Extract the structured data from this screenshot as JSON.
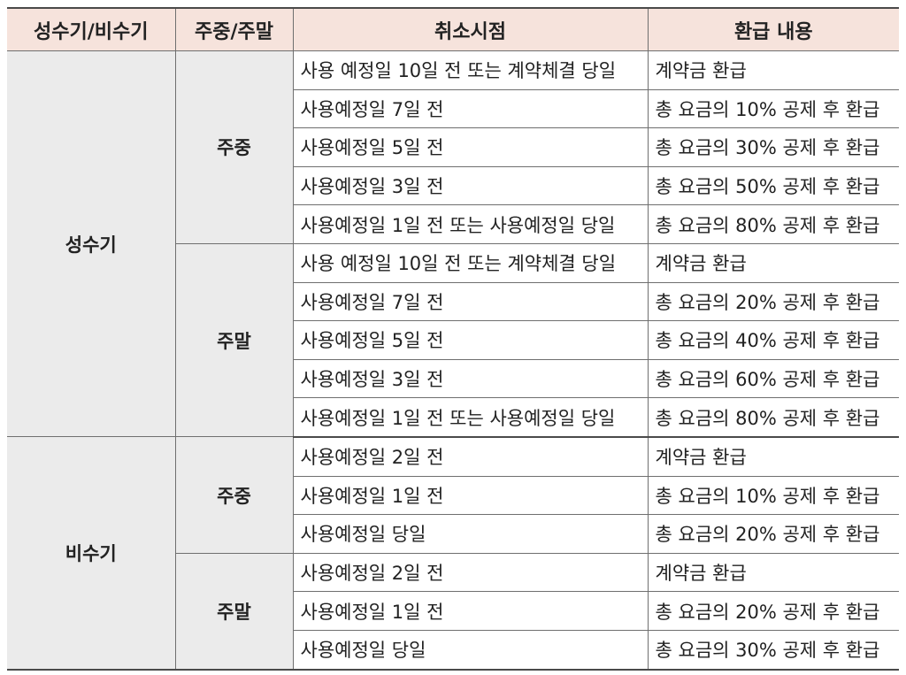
{
  "table": {
    "headers": [
      "성수기/비수기",
      "주중/주말",
      "취소시점",
      "환급 내용"
    ],
    "seasons": [
      {
        "label": "성수기",
        "groups": [
          {
            "label": "주중",
            "rows": [
              {
                "when": "사용 예정일 10일 전 또는 계약체결 당일",
                "refund": "계약금 환급"
              },
              {
                "when": "사용예정일 7일 전",
                "refund": "총 요금의 10% 공제 후 환급"
              },
              {
                "when": "사용예정일 5일 전",
                "refund": "총 요금의 30% 공제 후 환급"
              },
              {
                "when": "사용예정일 3일 전",
                "refund": "총 요금의 50% 공제 후 환급"
              },
              {
                "when": "사용예정일 1일 전 또는 사용예정일 당일",
                "refund": "총 요금의 80% 공제 후 환급"
              }
            ]
          },
          {
            "label": "주말",
            "rows": [
              {
                "when": "사용 예정일 10일 전 또는 계약체결 당일",
                "refund": "계약금 환급"
              },
              {
                "when": "사용예정일 7일 전",
                "refund": "총 요금의 20% 공제 후 환급"
              },
              {
                "when": "사용예정일 5일 전",
                "refund": "총 요금의 40% 공제 후 환급"
              },
              {
                "when": "사용예정일 3일 전",
                "refund": "총 요금의 60% 공제 후 환급"
              },
              {
                "when": "사용예정일 1일 전 또는 사용예정일 당일",
                "refund": "총 요금의 80% 공제 후 환급"
              }
            ]
          }
        ]
      },
      {
        "label": "비수기",
        "groups": [
          {
            "label": "주중",
            "rows": [
              {
                "when": "사용예정일 2일 전",
                "refund": "계약금 환급"
              },
              {
                "when": "사용예정일 1일 전",
                "refund": "총 요금의 10% 공제 후 환급"
              },
              {
                "when": "사용예정일 당일",
                "refund": "총 요금의 20% 공제 후 환급"
              }
            ]
          },
          {
            "label": "주말",
            "rows": [
              {
                "when": "사용예정일 2일 전",
                "refund": "계약금 환급"
              },
              {
                "when": "사용예정일 1일 전",
                "refund": "총 요금의 20% 공제 후 환급"
              },
              {
                "when": "사용예정일 당일",
                "refund": "총 요금의 30% 공제 후 환급"
              }
            ]
          }
        ]
      }
    ]
  },
  "colors": {
    "header_bg": "#f6e3dc",
    "label_bg": "#ebebeb",
    "border": "#6f6f6f"
  }
}
